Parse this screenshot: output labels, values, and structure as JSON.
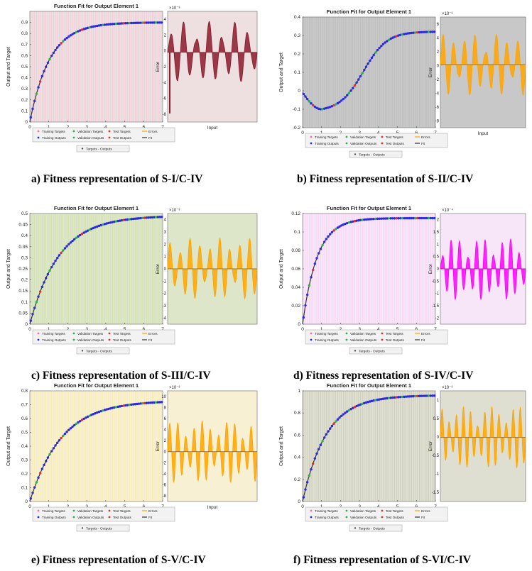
{
  "figure": {
    "panels": [
      {
        "caption": "a) Fitness representation of S-I/C-IV",
        "colors": {
          "fit_bg": "#eee0e0",
          "err_bg": "#eee0e0",
          "error": "#8b1a2c",
          "target": "#ff69b4"
        },
        "chart_data": [
          {
            "type": "line",
            "title": "Function Fit for Output Element 1",
            "xlabel": "",
            "ylabel": "Output and Target",
            "xlim": [
              0,
              7
            ],
            "ylim": [
              0,
              1
            ],
            "xticks": [
              "0",
              "1",
              "2",
              "3",
              "4",
              "5",
              "6",
              "7"
            ],
            "yticks": [
              "0",
              "0.1",
              "0.2",
              "0.3",
              "0.4",
              "0.5",
              "0.6",
              "0.7",
              "0.8",
              "0.9"
            ],
            "series": [
              {
                "name": "Fit",
                "function": "0.9*(1-exp(-0.95*x))"
              }
            ]
          },
          {
            "type": "area",
            "title": "",
            "xlabel": "Input",
            "ylabel": "Error",
            "exponent": "×10⁻³",
            "xlim": [
              0,
              7
            ],
            "yticks": [
              "4",
              "2",
              "0",
              "-2",
              "-4",
              "-6",
              "-8"
            ],
            "series": [
              {
                "name": "Errors",
                "pattern": "oscillating residual, large spike near input 0"
              }
            ]
          }
        ],
        "legend": {
          "rows": [
            [
              "Training Targets",
              "Validation Targets",
              "Test Targets",
              "Errors"
            ],
            [
              "Training Outputs",
              "Validation Outputs",
              "Test Outputs",
              "Fit"
            ]
          ],
          "extra": "Targets - Outputs"
        }
      },
      {
        "caption": "b) Fitness representation of S-II/C-IV",
        "colors": {
          "fit_bg": "#c8c8c8",
          "err_bg": "#c8c8c8",
          "error": "#ffa500",
          "target": "#888888"
        },
        "chart_data": [
          {
            "type": "line",
            "title": "Function Fit for Output Element 1",
            "xlabel": "",
            "ylabel": "Output and Target",
            "xlim": [
              0,
              7
            ],
            "ylim": [
              -0.2,
              0.4
            ],
            "xticks": [
              "0",
              "1",
              "2",
              "3",
              "4",
              "5",
              "6",
              "7"
            ],
            "yticks": [
              "-0.2",
              "-0.1",
              "0",
              "0.1",
              "0.2",
              "0.3",
              "0.4"
            ],
            "series": [
              {
                "name": "Fit",
                "function": "S-curve dipping to -0.1 at x=1 and rising to 0.32 at x=7"
              }
            ]
          },
          {
            "type": "area",
            "title": "",
            "xlabel": "Input",
            "ylabel": "Error",
            "exponent": "×10⁻³",
            "xlim": [
              0,
              7
            ],
            "yticks": [
              "6",
              "4",
              "2",
              "0",
              "-2",
              "-4",
              "-6",
              "-8"
            ],
            "series": [
              {
                "name": "Errors",
                "pattern": "oscillating residual"
              }
            ]
          }
        ],
        "legend": {
          "rows": [
            [
              "Training Targets",
              "Validation Targets",
              "Test Targets",
              "Errors"
            ],
            [
              "Training Outputs",
              "Validation Outputs",
              "Test Outputs",
              "Fit"
            ]
          ],
          "extra": "Targets - Outputs"
        }
      },
      {
        "caption": "c) Fitness representation of S-III/C-IV",
        "colors": {
          "fit_bg": "#dde6c9",
          "err_bg": "#dde6c9",
          "error": "#ffa500",
          "target": "#9acd32"
        },
        "chart_data": [
          {
            "type": "line",
            "title": "Function Fit for Output Element 1",
            "xlabel": "",
            "ylabel": "Output and Target",
            "xlim": [
              0,
              7
            ],
            "ylim": [
              0,
              0.5
            ],
            "xticks": [
              "0",
              "1",
              "2",
              "3",
              "4",
              "5",
              "6",
              "7"
            ],
            "yticks": [
              "0",
              "0.05",
              "0.1",
              "0.15",
              "0.2",
              "0.25",
              "0.3",
              "0.35",
              "0.4",
              "0.45",
              "0.5"
            ],
            "series": [
              {
                "name": "Fit",
                "function": "0.49*(1-exp(-0.65*x))"
              }
            ]
          },
          {
            "type": "area",
            "title": "",
            "xlabel": "",
            "ylabel": "Error",
            "exponent": "×10⁻³",
            "xlim": [
              0,
              7
            ],
            "yticks": [
              "4",
              "3",
              "2",
              "1",
              "0",
              "-1",
              "-2",
              "-3",
              "-4"
            ],
            "series": [
              {
                "name": "Errors",
                "pattern": "oscillating residual"
              }
            ]
          }
        ],
        "legend": {
          "rows": [
            [
              "Training Targets",
              "Validation Targets",
              "Test Targets",
              "Errors"
            ],
            [
              "Training Outputs",
              "Validation Outputs",
              "Test Outputs",
              "Fit"
            ]
          ],
          "extra": "Targets - Outputs"
        }
      },
      {
        "caption": "d) Fitness representation of S-IV/C-IV",
        "colors": {
          "fit_bg": "#f7e6f7",
          "err_bg": "#f7e6f7",
          "error": "#ff00ff",
          "target": "#ee82ee"
        },
        "chart_data": [
          {
            "type": "line",
            "title": "Function Fit for Output Element 1",
            "xlabel": "",
            "ylabel": "Output and Target",
            "xlim": [
              0,
              7
            ],
            "ylim": [
              0,
              0.12
            ],
            "xticks": [
              "0",
              "1",
              "2",
              "3",
              "4",
              "5",
              "6",
              "7"
            ],
            "yticks": [
              "0",
              "0.02",
              "0.04",
              "0.06",
              "0.08",
              "0.1",
              "0.12"
            ],
            "series": [
              {
                "name": "Fit",
                "function": "0.115*(1-exp(-1.3*x))"
              }
            ]
          },
          {
            "type": "area",
            "title": "",
            "xlabel": "",
            "ylabel": "Error",
            "exponent": "×10⁻⁴",
            "xlim": [
              0,
              7
            ],
            "yticks": [
              "2",
              "1.5",
              "1",
              "0.5",
              "0",
              "-0.5",
              "-1",
              "-1.5",
              "-2"
            ],
            "series": [
              {
                "name": "Errors",
                "pattern": "oscillating residual"
              }
            ]
          }
        ],
        "legend": {
          "rows": [
            [
              "Training Targets",
              "Validation Targets",
              "Test Targets",
              "Errors"
            ],
            [
              "Training Outputs",
              "Validation Outputs",
              "Test Outputs",
              "Fit"
            ]
          ],
          "extra": "Targets - Outputs"
        }
      },
      {
        "caption": "e) Fitness representation of S-V/C-IV",
        "colors": {
          "fit_bg": "#f7f0d2",
          "err_bg": "#f7f0d2",
          "error": "#ffa500",
          "target": "#ffd700"
        },
        "chart_data": [
          {
            "type": "line",
            "title": "Function Fit for Output Element 1",
            "xlabel": "",
            "ylabel": "Output and Target",
            "xlim": [
              0,
              7
            ],
            "ylim": [
              0,
              0.8
            ],
            "xticks": [
              "0",
              "1",
              "2",
              "3",
              "4",
              "5",
              "6",
              "7"
            ],
            "yticks": [
              "0",
              "0.1",
              "0.2",
              "0.3",
              "0.4",
              "0.5",
              "0.6",
              "0.7",
              "0.8"
            ],
            "series": [
              {
                "name": "Fit",
                "function": "0.73*(1-exp(-0.6*x))"
              }
            ]
          },
          {
            "type": "area",
            "title": "",
            "xlabel": "Input",
            "ylabel": "Error",
            "exponent": "×10⁻³",
            "xlim": [
              0,
              7
            ],
            "yticks": [
              "10",
              "8",
              "6",
              "4",
              "2",
              "0",
              "-2",
              "-4",
              "-6",
              "-8"
            ],
            "series": [
              {
                "name": "Errors",
                "pattern": "oscillating residual"
              }
            ]
          }
        ],
        "legend": {
          "rows": [
            [
              "Training Targets",
              "Validation Targets",
              "Test Targets",
              "Errors"
            ],
            [
              "Training Outputs",
              "Validation Outputs",
              "Test Outputs",
              "Fit"
            ]
          ],
          "extra": "Targets - Outputs"
        }
      },
      {
        "caption": "f) Fitness representation of S-VI/C-IV",
        "colors": {
          "fit_bg": "#dedfd0",
          "err_bg": "#dedfd0",
          "error": "#ffa500",
          "target": "#7a7a5a"
        },
        "chart_data": [
          {
            "type": "line",
            "title": "Function Fit for Output Element 1",
            "xlabel": "",
            "ylabel": "Output and Target",
            "xlim": [
              0,
              7
            ],
            "ylim": [
              0,
              1
            ],
            "xticks": [
              "0",
              "1",
              "2",
              "3",
              "4",
              "5",
              "6",
              "7"
            ],
            "yticks": [
              "0",
              "0.2",
              "0.4",
              "0.6",
              "0.8",
              "1"
            ],
            "series": [
              {
                "name": "Fit",
                "function": "0.96*(1-exp(-0.8*x))"
              }
            ]
          },
          {
            "type": "area",
            "title": "",
            "xlabel": "",
            "ylabel": "Error",
            "exponent": "×10⁻³",
            "xlim": [
              0,
              7
            ],
            "yticks": [
              "1",
              "0.5",
              "0",
              "-0.5",
              "-1",
              "-1.5"
            ],
            "series": [
              {
                "name": "Errors",
                "pattern": "oscillating residual"
              }
            ]
          }
        ],
        "legend": {
          "rows": [
            [
              "Training Targets",
              "Validation Targets",
              "Test Targets",
              "Errors"
            ],
            [
              "Training Outputs",
              "Validation Outputs",
              "Test Outputs",
              "Fit"
            ]
          ],
          "extra": "Targets - Outputs"
        }
      }
    ]
  }
}
